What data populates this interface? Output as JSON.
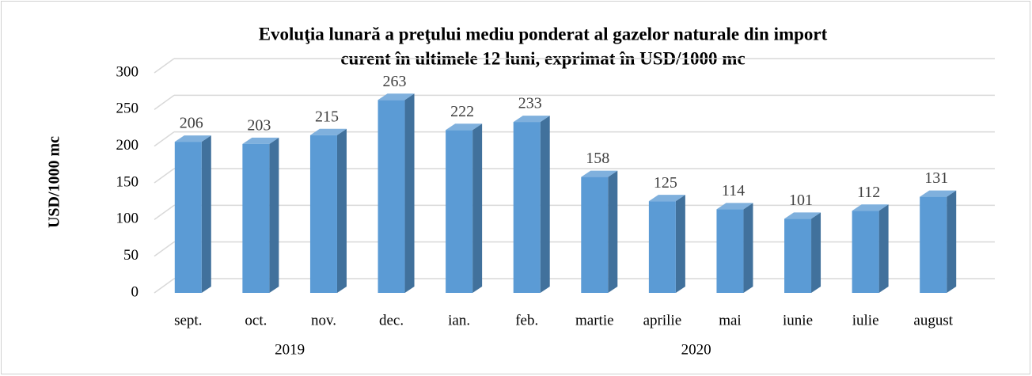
{
  "chart_data": {
    "type": "bar3d",
    "title": [
      "Evoluţia lunară a preţului mediu ponderat al gazelor naturale din import",
      "curent în ultimele 12 luni, exprimat în USD/1000 mc"
    ],
    "ylabel": "USD/1000 mc",
    "categories": [
      "sept.",
      "oct.",
      "nov.",
      "dec.",
      "ian.",
      "feb.",
      "martie",
      "aprilie",
      "mai",
      "iunie",
      "iulie",
      "august"
    ],
    "category_groups": [
      {
        "label": "2019",
        "count": 4
      },
      {
        "label": "2020",
        "count": 8
      }
    ],
    "values": [
      206,
      203,
      215,
      263,
      222,
      233,
      158,
      125,
      114,
      101,
      112,
      131
    ],
    "color": "#5b9bd5",
    "ylim": [
      0,
      300
    ],
    "yticks": [
      0,
      50,
      100,
      150,
      200,
      250,
      300
    ],
    "grid": true
  }
}
